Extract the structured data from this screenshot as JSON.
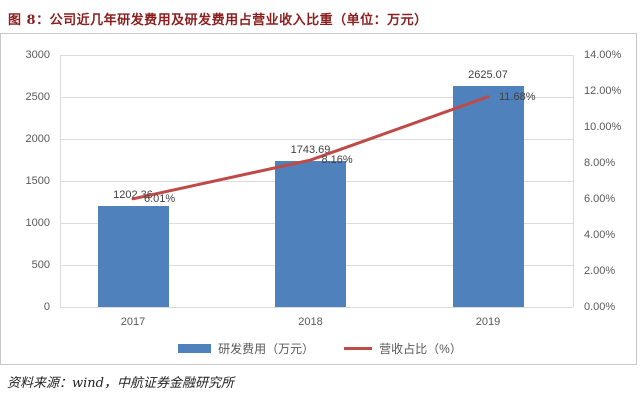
{
  "title": "图 8：公司近几年研发费用及研发费用占营业收入比重（单位：万元）",
  "source": "资料来源：wind，中航证券金融研究所",
  "colors": {
    "bar": "#4F81BD",
    "line": "#BE4B48",
    "title": "#8B1E1E",
    "grid": "#DBDBDB",
    "axis_text": "#595959"
  },
  "chart_data": {
    "type": "bar",
    "subtype": "bar-line-combo",
    "categories": [
      "2017",
      "2018",
      "2019"
    ],
    "series": [
      {
        "name": "研发费用（万元）",
        "type": "bar",
        "axis": "left",
        "color": "#4F81BD",
        "values": [
          1202.36,
          1743.69,
          2625.07
        ],
        "labels": [
          "1202.36",
          "1743.69",
          "2625.07"
        ]
      },
      {
        "name": "营收占比（%）",
        "type": "line",
        "axis": "right",
        "color": "#BE4B48",
        "values": [
          6.01,
          8.16,
          11.68
        ],
        "labels": [
          "6.01%",
          "8.16%",
          "11.68%"
        ]
      }
    ],
    "left_axis": {
      "min": 0,
      "max": 3000,
      "step": 500,
      "ticks": [
        "0",
        "500",
        "1000",
        "1500",
        "2000",
        "2500",
        "3000"
      ]
    },
    "right_axis": {
      "min": 0,
      "max": 14,
      "step": 2,
      "ticks": [
        "0.00%",
        "2.00%",
        "4.00%",
        "6.00%",
        "8.00%",
        "10.00%",
        "12.00%",
        "14.00%"
      ]
    },
    "grid": true,
    "legend_position": "bottom",
    "legend": [
      {
        "label": "研发费用（万元）",
        "swatch": "bar",
        "color": "#4F81BD"
      },
      {
        "label": "营收占比（%）",
        "swatch": "line",
        "color": "#BE4B48"
      }
    ]
  }
}
